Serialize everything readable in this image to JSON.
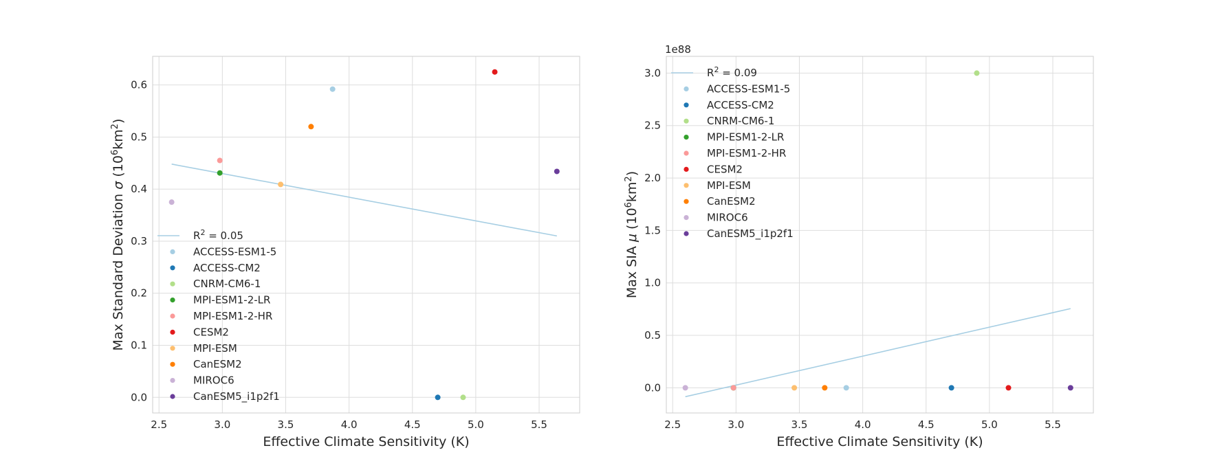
{
  "chart_data": [
    {
      "type": "scatter",
      "title": "",
      "xlabel": "Effective Climate Sensitivity (K)",
      "ylabel_parts": [
        "Max Standard Deviation ",
        "σ",
        " (10",
        "6",
        "km",
        "2",
        ")"
      ],
      "xlim": [
        2.45,
        5.82
      ],
      "ylim": [
        -0.03,
        0.655
      ],
      "xticks": [
        2.5,
        3.0,
        3.5,
        4.0,
        4.5,
        5.0,
        5.5
      ],
      "xtick_labels": [
        "2.5",
        "3.0",
        "3.5",
        "4.0",
        "4.5",
        "5.0",
        "5.5"
      ],
      "yticks": [
        0.0,
        0.1,
        0.2,
        0.3,
        0.4,
        0.5,
        0.6
      ],
      "ytick_labels": [
        "0.0",
        "0.1",
        "0.2",
        "0.3",
        "0.4",
        "0.5",
        "0.6"
      ],
      "y_offset_text": "",
      "grid": true,
      "legend_placement": "lower left",
      "fit": {
        "label_parts": [
          "R",
          "2",
          " = 0.05"
        ],
        "color": "#a6cee3",
        "x": [
          2.6,
          5.64
        ],
        "y": [
          0.448,
          0.31
        ]
      },
      "series": [
        {
          "name": "ACCESS-ESM1-5",
          "color": "#a6cee3",
          "x": [
            3.87
          ],
          "y": [
            0.592
          ]
        },
        {
          "name": "ACCESS-CM2",
          "color": "#1f78b4",
          "x": [
            4.7
          ],
          "y": [
            0.0
          ]
        },
        {
          "name": "CNRM-CM6-1",
          "color": "#b2df8a",
          "x": [
            4.9
          ],
          "y": [
            0.0
          ]
        },
        {
          "name": "MPI-ESM1-2-LR",
          "color": "#33a02c",
          "x": [
            2.98
          ],
          "y": [
            0.431
          ]
        },
        {
          "name": "MPI-ESM1-2-HR",
          "color": "#fb9a99",
          "x": [
            2.98
          ],
          "y": [
            0.455
          ]
        },
        {
          "name": "CESM2",
          "color": "#e31a1c",
          "x": [
            5.15
          ],
          "y": [
            0.625
          ]
        },
        {
          "name": "MPI-ESM",
          "color": "#fdbf6f",
          "x": [
            3.46
          ],
          "y": [
            0.409
          ]
        },
        {
          "name": "CanESM2",
          "color": "#ff7f00",
          "x": [
            3.7
          ],
          "y": [
            0.52
          ]
        },
        {
          "name": "MIROC6",
          "color": "#cab2d6",
          "x": [
            2.6
          ],
          "y": [
            0.375
          ]
        },
        {
          "name": "CanESM5_i1p2f1",
          "color": "#6a3d9a",
          "x": [
            5.64
          ],
          "y": [
            0.434
          ]
        }
      ]
    },
    {
      "type": "scatter",
      "title": "",
      "xlabel": "Effective Climate Sensitivity (K)",
      "ylabel_parts": [
        "Max SIA ",
        "μ",
        " (10",
        "6",
        "km",
        "2",
        ")"
      ],
      "xlim": [
        2.45,
        5.82
      ],
      "ylim": [
        -0.24,
        3.16
      ],
      "xticks": [
        2.5,
        3.0,
        3.5,
        4.0,
        4.5,
        5.0,
        5.5
      ],
      "xtick_labels": [
        "2.5",
        "3.0",
        "3.5",
        "4.0",
        "4.5",
        "5.0",
        "5.5"
      ],
      "yticks": [
        0.0,
        0.5,
        1.0,
        1.5,
        2.0,
        2.5,
        3.0
      ],
      "ytick_labels": [
        "0.0",
        "0.5",
        "1.0",
        "1.5",
        "2.0",
        "2.5",
        "3.0"
      ],
      "y_offset_text": "1e88",
      "grid": true,
      "legend_placement": "upper left",
      "fit": {
        "label_parts": [
          "R",
          "2",
          " = 0.09"
        ],
        "color": "#a6cee3",
        "x": [
          2.6,
          5.64
        ],
        "y": [
          -0.085,
          0.755
        ]
      },
      "series": [
        {
          "name": "ACCESS-ESM1-5",
          "color": "#a6cee3",
          "x": [
            3.87
          ],
          "y": [
            0.0
          ]
        },
        {
          "name": "ACCESS-CM2",
          "color": "#1f78b4",
          "x": [
            4.7
          ],
          "y": [
            0.0
          ]
        },
        {
          "name": "CNRM-CM6-1",
          "color": "#b2df8a",
          "x": [
            4.9
          ],
          "y": [
            3.0
          ]
        },
        {
          "name": "MPI-ESM1-2-LR",
          "color": "#33a02c",
          "x": [
            2.98
          ],
          "y": [
            0.0
          ]
        },
        {
          "name": "MPI-ESM1-2-HR",
          "color": "#fb9a99",
          "x": [
            2.98
          ],
          "y": [
            0.0
          ]
        },
        {
          "name": "CESM2",
          "color": "#e31a1c",
          "x": [
            5.15
          ],
          "y": [
            0.0
          ]
        },
        {
          "name": "MPI-ESM",
          "color": "#fdbf6f",
          "x": [
            3.46
          ],
          "y": [
            0.0
          ]
        },
        {
          "name": "CanESM2",
          "color": "#ff7f00",
          "x": [
            3.7
          ],
          "y": [
            0.0
          ]
        },
        {
          "name": "MIROC6",
          "color": "#cab2d6",
          "x": [
            2.6
          ],
          "y": [
            0.0
          ]
        },
        {
          "name": "CanESM5_i1p2f1",
          "color": "#6a3d9a",
          "x": [
            5.64
          ],
          "y": [
            0.0
          ]
        }
      ]
    }
  ]
}
